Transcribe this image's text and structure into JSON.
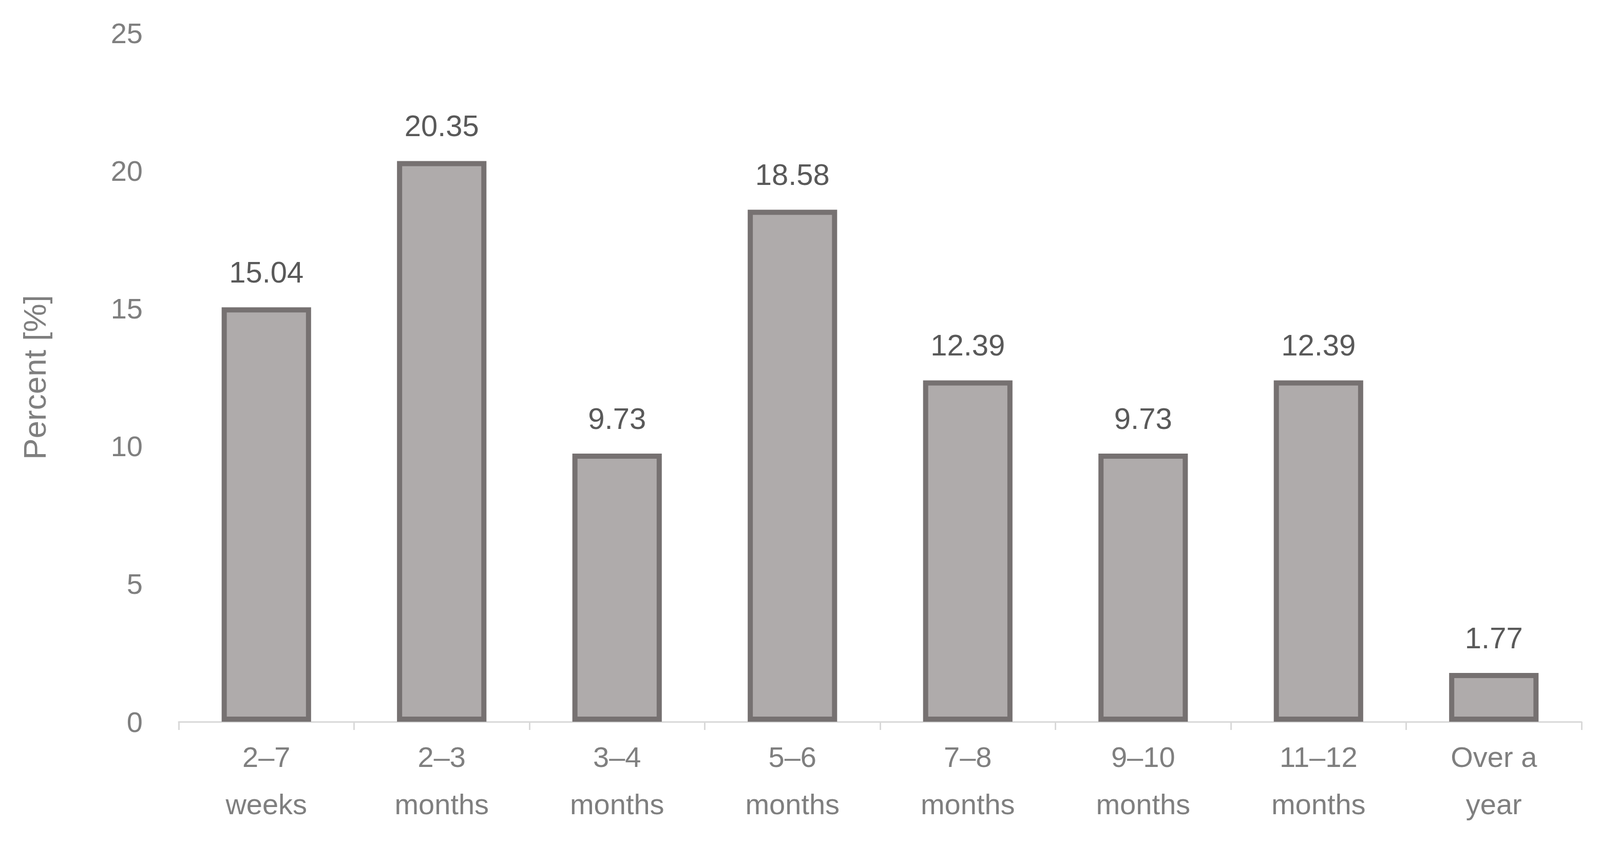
{
  "chart_data": {
    "type": "bar",
    "y_label": "Percent [%]",
    "categories": [
      "2–7 weeks",
      "2–3 months",
      "3–4 months",
      "5–6 months",
      "7–8 months",
      "9–10 months",
      "11–12 months",
      "Over a year"
    ],
    "values": [
      15.04,
      20.35,
      9.73,
      18.58,
      12.39,
      9.73,
      12.39,
      1.77
    ],
    "color": "#afabab",
    "ylim": [
      0,
      25
    ],
    "yticks": [
      0,
      5,
      10,
      15,
      20,
      25
    ],
    "grid": false,
    "data_labels": true
  }
}
